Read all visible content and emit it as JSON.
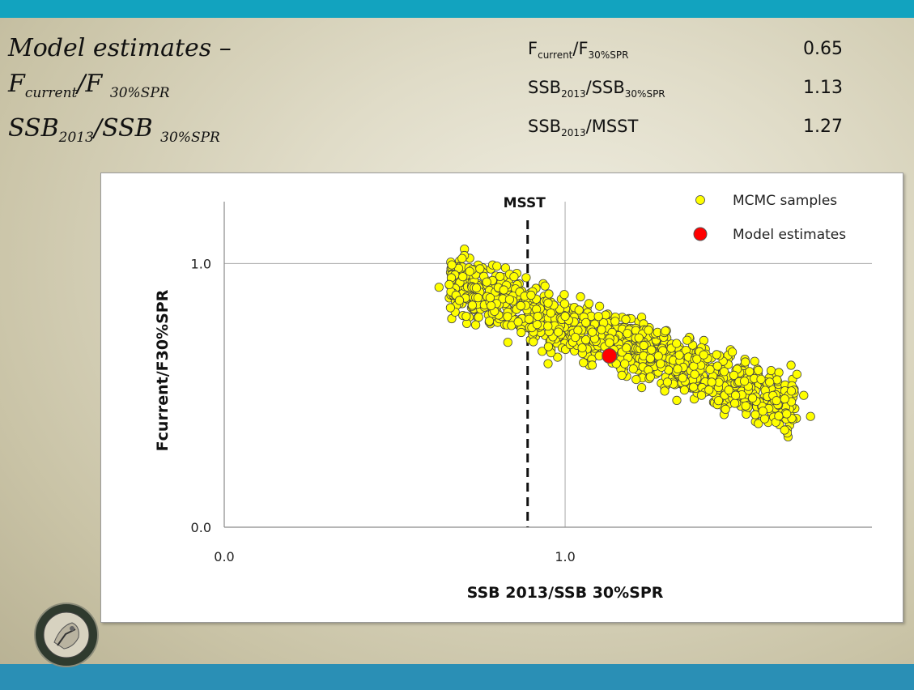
{
  "slide": {
    "title_line1": "Model estimates –",
    "title_f_base": "F",
    "title_f_sub": "current",
    "title_f_slash": "/F",
    "title_f_denom_sub": "30%SPR",
    "title_ssb_base": "SSB",
    "title_ssb_sub": "2013",
    "title_ssb_slash": "/SSB",
    "title_ssb_denom_sub": "30%SPR"
  },
  "stats": [
    {
      "num_base": "F",
      "num_sub": "current",
      "den_base": "/F",
      "den_sub": "30%SPR",
      "value": "0.65"
    },
    {
      "num_base": "SSB",
      "num_sub": "2013",
      "den_base": "/SSB",
      "den_sub": "30%SPR",
      "value": "1.13"
    },
    {
      "num_base": "SSB",
      "num_sub": "2013",
      "den_base": "/MSST",
      "den_sub": "",
      "value": "1.27"
    }
  ],
  "colors": {
    "top_bar": "#12a3bf",
    "bottom_bar": "#2a8fb5",
    "mcmc_fill": "#ffff00",
    "model_fill": "#ff0000"
  },
  "chart_data": {
    "type": "scatter",
    "xlabel": "SSB 2013/SSB 30%SPR",
    "ylabel": "Fcurrent/F30%SPR",
    "xlim": [
      0,
      1.9
    ],
    "ylim": [
      0,
      1.25
    ],
    "x_ticks": [
      "0.0",
      "1.0"
    ],
    "y_ticks": [
      "0.0",
      "1.0"
    ],
    "grid": true,
    "legend_position": "top-right",
    "reference_line": {
      "label": "MSST",
      "x": 0.89,
      "style": "dashed"
    },
    "series": [
      {
        "name": "MCMC samples",
        "marker": "circle-yellow",
        "description_points": [
          [
            0.66,
            0.92
          ],
          [
            0.68,
            0.88
          ],
          [
            0.7,
            0.95
          ],
          [
            0.72,
            0.97
          ],
          [
            0.71,
            0.8
          ],
          [
            0.75,
            0.98
          ],
          [
            0.77,
            0.93
          ],
          [
            0.8,
            0.99
          ],
          [
            0.82,
            0.9
          ],
          [
            0.85,
            0.95
          ],
          [
            0.87,
            0.84
          ],
          [
            0.9,
            0.88
          ],
          [
            0.92,
            0.8
          ],
          [
            0.95,
            0.85
          ],
          [
            0.98,
            0.74
          ],
          [
            1.0,
            0.8
          ],
          [
            1.03,
            0.72
          ],
          [
            1.05,
            0.68
          ],
          [
            1.08,
            0.74
          ],
          [
            1.1,
            0.65
          ],
          [
            1.13,
            0.7
          ],
          [
            1.15,
            0.62
          ],
          [
            1.18,
            0.68
          ],
          [
            1.2,
            0.6
          ],
          [
            1.23,
            0.65
          ],
          [
            1.25,
            0.57
          ],
          [
            1.28,
            0.62
          ],
          [
            1.3,
            0.55
          ],
          [
            1.33,
            0.6
          ],
          [
            1.35,
            0.52
          ],
          [
            1.38,
            0.58
          ],
          [
            1.4,
            0.5
          ],
          [
            1.43,
            0.55
          ],
          [
            1.45,
            0.48
          ],
          [
            1.48,
            0.52
          ],
          [
            1.5,
            0.5
          ],
          [
            1.53,
            0.46
          ],
          [
            1.55,
            0.49
          ],
          [
            1.58,
            0.44
          ],
          [
            1.6,
            0.55
          ],
          [
            1.62,
            0.48
          ],
          [
            1.65,
            0.43
          ],
          [
            1.68,
            0.58
          ],
          [
            1.7,
            0.5
          ],
          [
            1.72,
            0.42
          ],
          [
            0.63,
            0.91
          ],
          [
            0.69,
            0.86
          ],
          [
            0.78,
            0.87
          ],
          [
            0.95,
            0.62
          ],
          [
            1.25,
            0.64
          ]
        ]
      },
      {
        "name": "Model estimates",
        "marker": "circle-red",
        "points": [
          [
            1.13,
            0.65
          ]
        ]
      }
    ]
  }
}
